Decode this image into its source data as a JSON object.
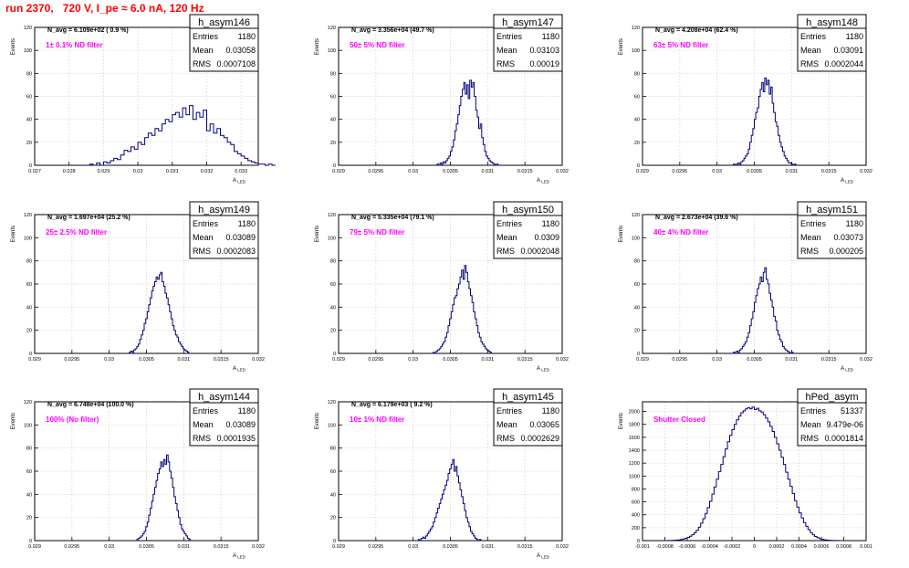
{
  "page_title": "run 2370,   720 V, I_pe ≈ 6.0 nA, 120 Hz",
  "chart_data": [
    {
      "type": "histogram",
      "name": "h_asym146",
      "navg": "N_avg = 6.109e+02 ( 0.9 %)",
      "note": "1± 0.1% ND filter",
      "stats": {
        "entries": "1180",
        "mean": "0.03058",
        "rms": "0.0007108"
      },
      "xlabel": "A_LED",
      "ylabel": "Events",
      "xlim": [
        0.027,
        0.0335
      ],
      "ylim": [
        0,
        120
      ],
      "xticks": [
        0.027,
        0.028,
        0.029,
        0.03,
        0.031,
        0.032,
        0.033
      ],
      "xtick_labels": [
        "0.027",
        "0.028",
        "0.029",
        "0.03",
        "0.031",
        "0.032",
        "0.033"
      ],
      "yticks": [
        0,
        20,
        40,
        60,
        80,
        100,
        120
      ],
      "bins": {
        "start": 0.0285,
        "width": 0.0001,
        "counts": [
          0,
          1,
          0,
          2,
          0,
          3,
          2,
          4,
          6,
          5,
          9,
          13,
          12,
          16,
          14,
          20,
          18,
          24,
          28,
          26,
          32,
          30,
          36,
          40,
          38,
          44,
          46,
          42,
          50,
          44,
          52,
          40,
          46,
          42,
          48,
          30,
          36,
          28,
          32,
          26,
          24,
          20,
          18,
          12,
          10,
          8,
          6,
          4,
          3,
          2,
          1,
          1,
          0,
          1,
          0
        ]
      }
    },
    {
      "type": "histogram",
      "name": "h_asym147",
      "navg": "N_avg = 3.356e+04 (49.7 %)",
      "note": "50± 5% ND filter",
      "stats": {
        "entries": "1180",
        "mean": "0.03103",
        "rms": "0.00019"
      },
      "xlabel": "A_LED",
      "ylabel": "Events",
      "xlim": [
        0.029,
        0.032
      ],
      "ylim": [
        0,
        120
      ],
      "xticks": [
        0.029,
        0.0295,
        0.03,
        0.0305,
        0.031,
        0.0315,
        0.032
      ],
      "xtick_labels": [
        "0.029",
        "0.0295",
        "0.03",
        "0.0305",
        "0.031",
        "0.0315",
        "0.032"
      ],
      "yticks": [
        0,
        20,
        40,
        60,
        80,
        100,
        120
      ],
      "bins": {
        "start": 0.0303,
        "width": 2e-05,
        "counts": [
          0,
          1,
          0,
          2,
          1,
          3,
          2,
          4,
          6,
          8,
          12,
          16,
          22,
          30,
          36,
          44,
          52,
          60,
          66,
          72,
          62,
          70,
          58,
          74,
          68,
          72,
          60,
          48,
          42,
          32,
          36,
          24,
          18,
          12,
          8,
          6,
          4,
          3,
          2,
          1,
          0,
          1,
          0
        ]
      }
    },
    {
      "type": "histogram",
      "name": "h_asym148",
      "navg": "N_avg = 4.208e+04 (62.4 %)",
      "note": "63± 5% ND filter",
      "stats": {
        "entries": "1180",
        "mean": "0.03091",
        "rms": "0.0002044"
      },
      "xlabel": "A_LED",
      "ylabel": "Events",
      "xlim": [
        0.029,
        0.032
      ],
      "ylim": [
        0,
        120
      ],
      "xticks": [
        0.029,
        0.0295,
        0.03,
        0.0305,
        0.031,
        0.0315,
        0.032
      ],
      "xtick_labels": [
        "0.029",
        "0.0295",
        "0.03",
        "0.0305",
        "0.031",
        "0.0315",
        "0.032"
      ],
      "yticks": [
        0,
        20,
        40,
        60,
        80,
        100,
        120
      ],
      "bins": {
        "start": 0.0302,
        "width": 2e-05,
        "counts": [
          0,
          1,
          0,
          1,
          2,
          1,
          3,
          4,
          6,
          8,
          10,
          14,
          20,
          26,
          32,
          40,
          46,
          50,
          60,
          66,
          72,
          64,
          76,
          70,
          74,
          62,
          68,
          54,
          46,
          38,
          34,
          26,
          20,
          16,
          12,
          8,
          6,
          4,
          2,
          2,
          1,
          0,
          1,
          0
        ]
      }
    },
    {
      "type": "histogram",
      "name": "h_asym149",
      "navg": "N_avg = 1.697e+04 (25.2 %)",
      "note": "25± 2.5% ND filter",
      "stats": {
        "entries": "1180",
        "mean": "0.03089",
        "rms": "0.0002083"
      },
      "xlabel": "A_LED",
      "ylabel": "Events",
      "xlim": [
        0.029,
        0.032
      ],
      "ylim": [
        0,
        120
      ],
      "xticks": [
        0.029,
        0.0295,
        0.03,
        0.0305,
        0.031,
        0.0315,
        0.032
      ],
      "xtick_labels": [
        "0.029",
        "0.0295",
        "0.03",
        "0.0305",
        "0.031",
        "0.0315",
        "0.032"
      ],
      "yticks": [
        0,
        20,
        40,
        60,
        80,
        100,
        120
      ],
      "bins": {
        "start": 0.03025,
        "width": 2e-05,
        "counts": [
          0,
          1,
          2,
          1,
          3,
          4,
          6,
          8,
          12,
          16,
          20,
          26,
          30,
          36,
          42,
          48,
          54,
          58,
          62,
          66,
          64,
          68,
          70,
          62,
          58,
          52,
          48,
          42,
          36,
          30,
          24,
          20,
          16,
          14,
          10,
          8,
          6,
          4,
          3,
          2,
          1,
          0
        ]
      }
    },
    {
      "type": "histogram",
      "name": "h_asym150",
      "navg": "N_avg = 5.335e+04 (79.1 %)",
      "note": "79± 5% ND filter",
      "stats": {
        "entries": "1180",
        "mean": "0.0309",
        "rms": "0.0002048"
      },
      "xlabel": "A_LED",
      "ylabel": "Events",
      "xlim": [
        0.029,
        0.032
      ],
      "ylim": [
        0,
        120
      ],
      "xticks": [
        0.029,
        0.0295,
        0.03,
        0.0305,
        0.031,
        0.0315,
        0.032
      ],
      "xtick_labels": [
        "0.029",
        "0.0295",
        "0.03",
        "0.0305",
        "0.031",
        "0.0315",
        "0.032"
      ],
      "yticks": [
        0,
        20,
        40,
        60,
        80,
        100,
        120
      ],
      "bins": {
        "start": 0.03025,
        "width": 2e-05,
        "counts": [
          0,
          1,
          0,
          2,
          3,
          4,
          6,
          8,
          10,
          14,
          18,
          24,
          30,
          36,
          42,
          48,
          50,
          56,
          60,
          66,
          72,
          64,
          76,
          70,
          62,
          56,
          50,
          44,
          36,
          30,
          24,
          18,
          14,
          10,
          8,
          6,
          4,
          3,
          2,
          1,
          0
        ]
      }
    },
    {
      "type": "histogram",
      "name": "h_asym151",
      "navg": "N_avg = 2.673e+04 (39.6 %)",
      "note": "40± 4% ND filter",
      "stats": {
        "entries": "1180",
        "mean": "0.03073",
        "rms": "0.000205"
      },
      "xlabel": "A_LED",
      "ylabel": "Events",
      "xlim": [
        0.029,
        0.032
      ],
      "ylim": [
        0,
        120
      ],
      "xticks": [
        0.029,
        0.0295,
        0.03,
        0.0305,
        0.031,
        0.0315,
        0.032
      ],
      "xtick_labels": [
        "0.029",
        "0.0295",
        "0.03",
        "0.0305",
        "0.031",
        "0.0315",
        "0.032"
      ],
      "yticks": [
        0,
        20,
        40,
        60,
        80,
        100,
        120
      ],
      "bins": {
        "start": 0.0302,
        "width": 2e-05,
        "counts": [
          0,
          1,
          0,
          2,
          1,
          3,
          4,
          6,
          8,
          10,
          14,
          18,
          24,
          30,
          36,
          44,
          50,
          56,
          60,
          66,
          62,
          70,
          74,
          64,
          60,
          52,
          46,
          40,
          32,
          28,
          20,
          16,
          12,
          10,
          6,
          4,
          3,
          2,
          1,
          0,
          1,
          0
        ]
      }
    },
    {
      "type": "histogram",
      "name": "h_asym144",
      "navg": "N_avg = 6.748e+04 (100.0 %)",
      "note": "100% (No filter)",
      "stats": {
        "entries": "1180",
        "mean": "0.03089",
        "rms": "0.0001935"
      },
      "xlabel": "A_LED",
      "ylabel": "Events",
      "xlim": [
        0.029,
        0.032
      ],
      "ylim": [
        0,
        120
      ],
      "xticks": [
        0.029,
        0.0295,
        0.03,
        0.0305,
        0.031,
        0.0315,
        0.032
      ],
      "xtick_labels": [
        "0.029",
        "0.0295",
        "0.03",
        "0.0305",
        "0.031",
        "0.0315",
        "0.032"
      ],
      "yticks": [
        0,
        20,
        40,
        60,
        80,
        100,
        120
      ],
      "bins": {
        "start": 0.03035,
        "width": 2e-05,
        "counts": [
          0,
          1,
          2,
          3,
          4,
          6,
          8,
          12,
          16,
          22,
          28,
          34,
          40,
          46,
          52,
          58,
          62,
          68,
          64,
          70,
          66,
          74,
          68,
          60,
          54,
          46,
          38,
          32,
          26,
          20,
          14,
          10,
          8,
          6,
          4,
          2,
          1,
          0
        ]
      }
    },
    {
      "type": "histogram",
      "name": "h_asym145",
      "navg": "N_avg = 6.179e+03 ( 9.2 %)",
      "note": "10± 1% ND filter",
      "stats": {
        "entries": "1180",
        "mean": "0.03065",
        "rms": "0.0002629"
      },
      "xlabel": "A_LED",
      "ylabel": "Events",
      "xlim": [
        0.029,
        0.032
      ],
      "ylim": [
        0,
        120
      ],
      "xticks": [
        0.029,
        0.0295,
        0.03,
        0.0305,
        0.031,
        0.0315,
        0.032
      ],
      "xtick_labels": [
        "0.029",
        "0.0295",
        "0.03",
        "0.0305",
        "0.031",
        "0.0315",
        "0.032"
      ],
      "yticks": [
        0,
        20,
        40,
        60,
        80,
        100,
        120
      ],
      "bins": {
        "start": 0.03005,
        "width": 2e-05,
        "counts": [
          0,
          1,
          0,
          2,
          3,
          2,
          4,
          6,
          8,
          10,
          12,
          16,
          20,
          24,
          28,
          32,
          36,
          40,
          44,
          48,
          52,
          58,
          62,
          66,
          70,
          60,
          64,
          56,
          50,
          44,
          38,
          32,
          26,
          20,
          16,
          12,
          8,
          6,
          4,
          2,
          1,
          0,
          1,
          0
        ]
      }
    },
    {
      "type": "histogram",
      "name": "hPed_asym",
      "navg": "",
      "note": "Shutter Closed",
      "stats": {
        "entries": "51337",
        "mean": "9.479e-06",
        "rms": "0.0001814"
      },
      "xlabel": "",
      "ylabel": "Events",
      "xlim": [
        -0.001,
        0.001
      ],
      "ylim": [
        0,
        2150
      ],
      "xticks": [
        -0.001,
        -0.0008,
        -0.0006,
        -0.0004,
        -0.0002,
        0,
        0.0002,
        0.0004,
        0.0006,
        0.0008,
        0.001
      ],
      "xtick_labels": [
        "-0.001",
        "-0.0008",
        "-0.0006",
        "-0.0004",
        "-0.0002",
        "0",
        "0.0002",
        "0.0004",
        "0.0006",
        "0.0008",
        "0.001"
      ],
      "yticks": [
        0,
        200,
        400,
        600,
        800,
        1000,
        1200,
        1400,
        1600,
        1800,
        2000
      ],
      "bins": {
        "start": -0.0008,
        "width": 2e-05,
        "counts": [
          0,
          1,
          2,
          3,
          5,
          8,
          12,
          18,
          26,
          36,
          50,
          68,
          90,
          120,
          160,
          210,
          270,
          340,
          420,
          510,
          610,
          720,
          830,
          950,
          1070,
          1180,
          1300,
          1420,
          1530,
          1630,
          1720,
          1800,
          1870,
          1930,
          1980,
          2010,
          2040,
          2060,
          2040,
          2070,
          2030,
          2050,
          2010,
          1990,
          1950,
          1900,
          1840,
          1770,
          1690,
          1600,
          1500,
          1400,
          1290,
          1180,
          1060,
          950,
          840,
          730,
          620,
          520,
          430,
          350,
          280,
          220,
          170,
          125,
          90,
          64,
          44,
          30,
          20,
          13,
          8,
          5,
          3,
          2,
          1,
          1,
          0
        ]
      }
    }
  ]
}
